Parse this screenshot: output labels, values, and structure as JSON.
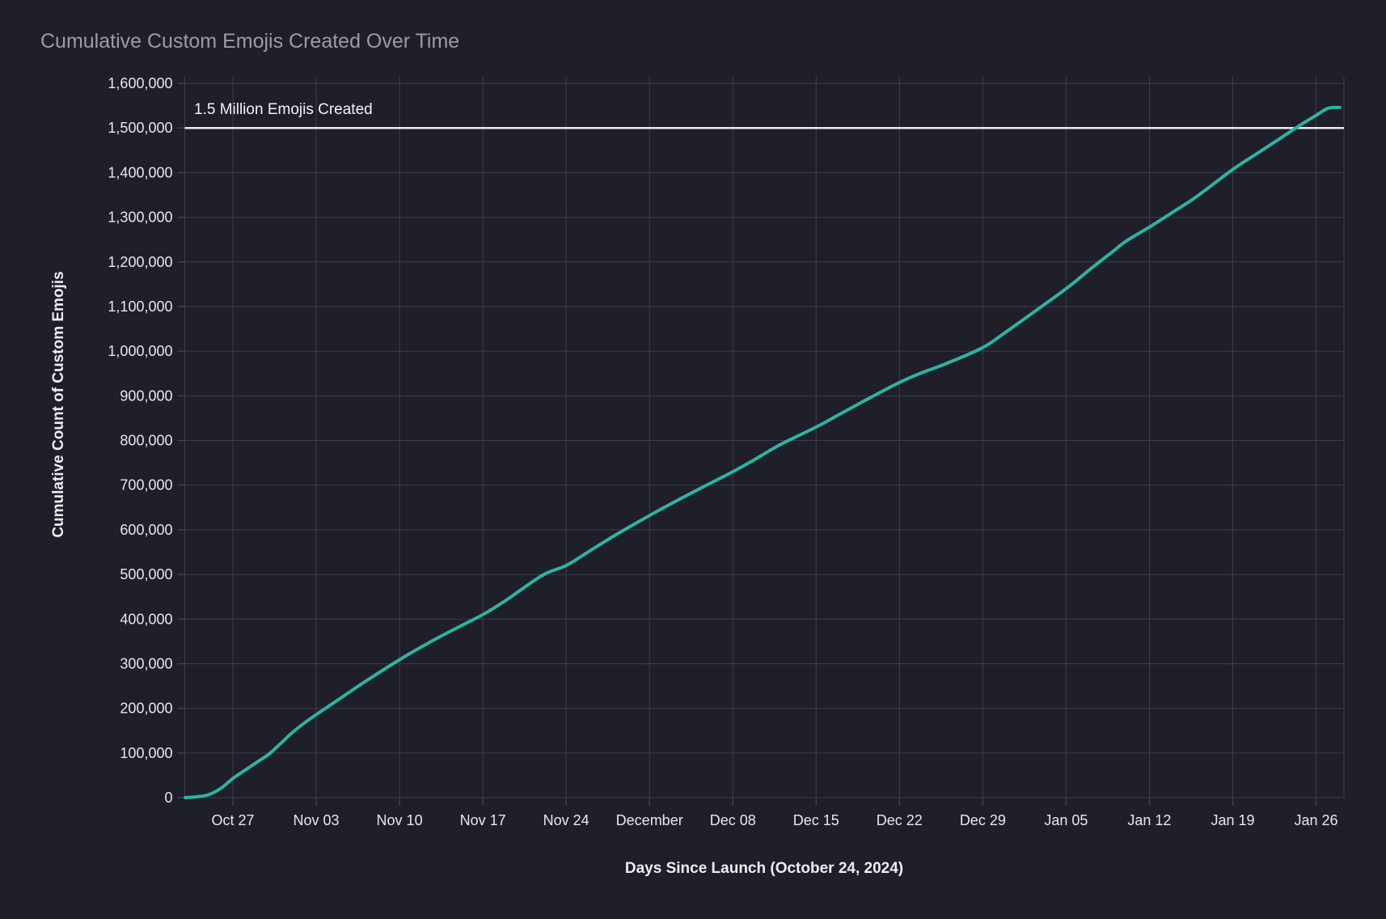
{
  "title": "Cumulative Custom Emojis Created Over Time",
  "colors": {
    "background": "#1e1f28",
    "grid": "#3c3e4e",
    "title_text": "#9b9ca8",
    "tick_text": "#e6e7f0",
    "axis_title_text": "#edeef5",
    "annotation_text": "#f2f3f8",
    "line": "#2db3a3",
    "reference_line": "#e8e9f1"
  },
  "chart_data": {
    "type": "line",
    "title": "Cumulative Custom Emojis Created Over Time",
    "xlabel": "Days Since Launch (October 24, 2024)",
    "ylabel": "Cumulative Count of Custom Emojis",
    "grid": true,
    "legend": "none",
    "x_axis": {
      "label": "Days Since Launch (October 24, 2024)",
      "domain_days": [
        -1.05,
        96.35
      ],
      "tick_days": [
        3,
        10,
        17,
        24,
        31,
        38,
        45,
        52,
        59,
        66,
        73,
        80,
        87,
        94
      ],
      "tick_labels": [
        "Oct 27",
        "Nov 03",
        "Nov 10",
        "Nov 17",
        "Nov 24",
        "December",
        "Dec 08",
        "Dec 15",
        "Dec 22",
        "Dec 29",
        "Jan 05",
        "Jan 12",
        "Jan 19",
        "Jan 26"
      ]
    },
    "y_axis": {
      "label": "Cumulative Count of Custom Emojis",
      "domain": [
        0,
        1614000
      ],
      "tick_values": [
        0,
        100000,
        200000,
        300000,
        400000,
        500000,
        600000,
        700000,
        800000,
        900000,
        1000000,
        1100000,
        1200000,
        1300000,
        1400000,
        1500000,
        1600000
      ],
      "tick_labels": [
        "0",
        "100,000",
        "200,000",
        "300,000",
        "400,000",
        "500,000",
        "600,000",
        "700,000",
        "800,000",
        "900,000",
        "1,000,000",
        "1,100,000",
        "1,200,000",
        "1,300,000",
        "1,400,000",
        "1,500,000",
        "1,600,000"
      ]
    },
    "reference_line": {
      "value": 1500000,
      "label": "1.5 Million Emojis Created",
      "color": "#e8e9f1"
    },
    "series": [
      {
        "name": "Cumulative Custom Emojis",
        "color": "#2db3a3",
        "points": [
          [
            -1,
            "Oct 23",
            0
          ],
          [
            0,
            "Oct 24",
            2000
          ],
          [
            1,
            "Oct 25",
            7000
          ],
          [
            2,
            "Oct 26",
            21000
          ],
          [
            3,
            "Oct 27",
            43000
          ],
          [
            4,
            "Oct 28",
            61000
          ],
          [
            5,
            "Oct 29",
            79000
          ],
          [
            6,
            "Oct 30",
            97000
          ],
          [
            7,
            "Oct 31",
            121000
          ],
          [
            8,
            "Nov 01",
            146000
          ],
          [
            9,
            "Nov 02",
            167000
          ],
          [
            10,
            "Nov 03",
            186000
          ],
          [
            12,
            "Nov 05",
            222000
          ],
          [
            14,
            "Nov 07",
            258000
          ],
          [
            17,
            "Nov 10",
            309000
          ],
          [
            19,
            "Nov 12",
            340000
          ],
          [
            21,
            "Nov 14",
            369000
          ],
          [
            24,
            "Nov 17",
            410000
          ],
          [
            26,
            "Nov 19",
            443000
          ],
          [
            29,
            "Nov 22",
            498000
          ],
          [
            31,
            "Nov 24",
            520000
          ],
          [
            33,
            "Nov 26",
            553000
          ],
          [
            35,
            "Nov 28",
            586000
          ],
          [
            38,
            "Dec 01",
            632000
          ],
          [
            40,
            "Dec 03",
            661000
          ],
          [
            42,
            "Dec 05",
            689000
          ],
          [
            45,
            "Dec 08",
            730000
          ],
          [
            47,
            "Dec 10",
            760000
          ],
          [
            49,
            "Dec 12",
            791000
          ],
          [
            52,
            "Dec 15",
            830000
          ],
          [
            54,
            "Dec 17",
            859000
          ],
          [
            56,
            "Dec 19",
            888000
          ],
          [
            59,
            "Dec 22",
            930000
          ],
          [
            61,
            "Dec 24",
            953000
          ],
          [
            63,
            "Dec 26",
            973000
          ],
          [
            66,
            "Dec 29",
            1008000
          ],
          [
            68,
            "Dec 31",
            1044000
          ],
          [
            70,
            "Jan 02",
            1082000
          ],
          [
            73,
            "Jan 05",
            1140000
          ],
          [
            75,
            "Jan 07",
            1183000
          ],
          [
            77,
            "Jan 09",
            1225000
          ],
          [
            78,
            "Jan 10",
            1246000
          ],
          [
            80,
            "Jan 12",
            1278000
          ],
          [
            82,
            "Jan 14",
            1312000
          ],
          [
            84,
            "Jan 16",
            1347000
          ],
          [
            87,
            "Jan 19",
            1407000
          ],
          [
            89,
            "Jan 21",
            1442000
          ],
          [
            91,
            "Jan 23",
            1477000
          ],
          [
            93,
            "Jan 25",
            1512000
          ],
          [
            94,
            "Jan 26",
            1528000
          ],
          [
            95,
            "Jan 27",
            1544000
          ],
          [
            96,
            "Jan 28",
            1546000
          ]
        ]
      }
    ]
  }
}
